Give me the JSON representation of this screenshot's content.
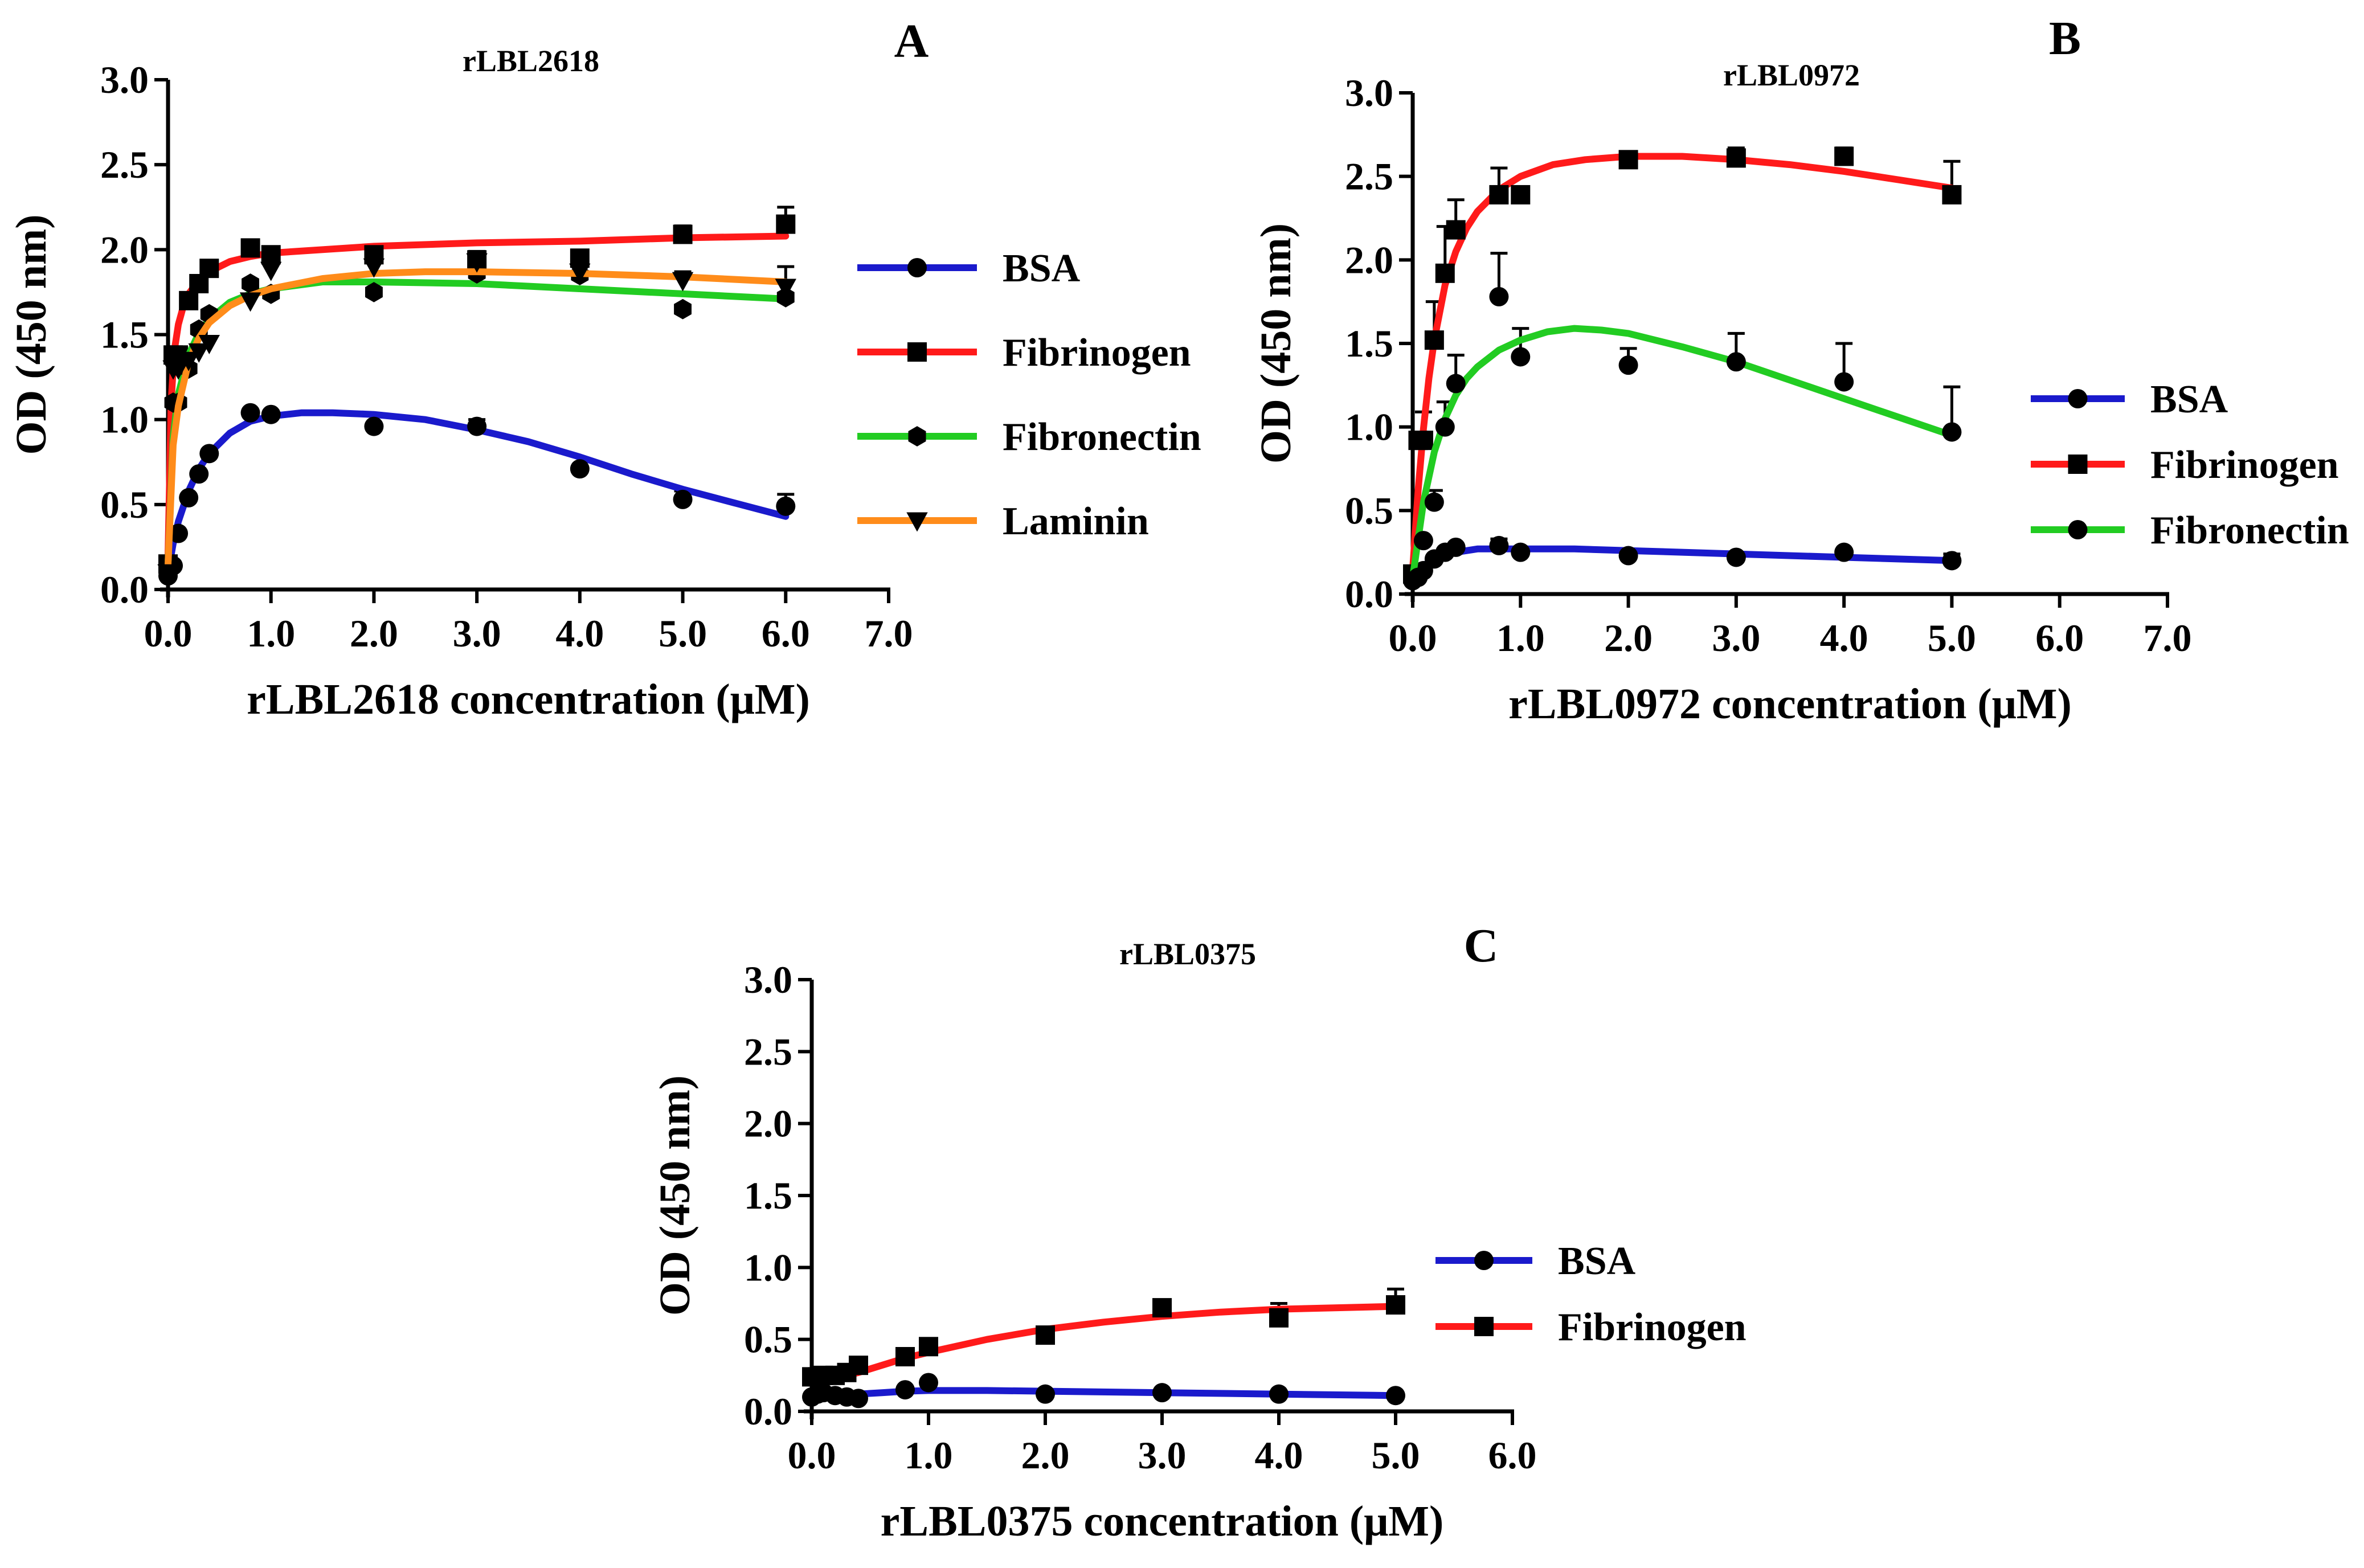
{
  "chart_data": [
    {
      "type": "scatter",
      "panel_label": "A",
      "title": "rLBL2618",
      "xlabel": "rLBL2618 concentration (μM)",
      "ylabel": "OD (450 nm)",
      "xlim": [
        0,
        7
      ],
      "ylim": [
        0,
        3
      ],
      "xticks": [
        "0.0",
        "1.0",
        "2.0",
        "3.0",
        "4.0",
        "5.0",
        "6.0",
        "7.0"
      ],
      "yticks": [
        "0.0",
        "0.5",
        "1.0",
        "1.5",
        "2.0",
        "2.5",
        "3.0"
      ],
      "series": [
        {
          "name": "BSA",
          "color": "#1a1acc",
          "marker": "circle",
          "x": [
            0.0,
            0.05,
            0.1,
            0.2,
            0.3,
            0.4,
            0.8,
            1.0,
            2.0,
            3.0,
            4.0,
            5.0,
            6.0
          ],
          "y": [
            0.08,
            0.14,
            0.33,
            0.54,
            0.68,
            0.8,
            1.04,
            1.03,
            0.96,
            0.96,
            0.71,
            0.53,
            0.49
          ],
          "err": [
            0,
            0,
            0,
            0,
            0,
            0,
            0,
            0,
            0,
            0.04,
            0,
            0.05,
            0.07
          ],
          "fit_x": [
            0.0,
            0.05,
            0.1,
            0.2,
            0.3,
            0.4,
            0.6,
            0.8,
            1.0,
            1.3,
            1.6,
            2.0,
            2.5,
            3.0,
            3.5,
            4.0,
            4.5,
            5.0,
            5.5,
            6.0
          ],
          "fit_y": [
            0.1,
            0.27,
            0.4,
            0.58,
            0.71,
            0.8,
            0.92,
            0.99,
            1.02,
            1.04,
            1.04,
            1.03,
            1.0,
            0.94,
            0.87,
            0.78,
            0.68,
            0.59,
            0.51,
            0.43
          ]
        },
        {
          "name": "Fibrinogen",
          "color": "#ff1a1a",
          "marker": "square",
          "x": [
            0.0,
            0.05,
            0.1,
            0.2,
            0.3,
            0.4,
            0.8,
            1.0,
            2.0,
            3.0,
            4.0,
            5.0,
            6.0
          ],
          "y": [
            0.15,
            1.38,
            1.38,
            1.7,
            1.8,
            1.89,
            2.01,
            1.97,
            1.97,
            1.94,
            1.95,
            2.09,
            2.15
          ],
          "err": [
            0,
            0,
            0,
            0,
            0,
            0,
            0,
            0.04,
            0.04,
            0.05,
            0,
            0.05,
            0.1
          ],
          "fit_x": [
            0.0,
            0.03,
            0.06,
            0.1,
            0.15,
            0.2,
            0.3,
            0.4,
            0.6,
            0.8,
            1.0,
            1.5,
            2.0,
            3.0,
            4.0,
            5.0,
            6.0
          ],
          "fit_y": [
            0.2,
            1.1,
            1.4,
            1.56,
            1.67,
            1.74,
            1.82,
            1.87,
            1.93,
            1.96,
            1.98,
            2.0,
            2.02,
            2.04,
            2.05,
            2.07,
            2.08
          ]
        },
        {
          "name": "Fibronectin",
          "color": "#22cc22",
          "marker": "hexagon",
          "x": [
            0.0,
            0.05,
            0.1,
            0.2,
            0.3,
            0.4,
            0.8,
            1.0,
            2.0,
            3.0,
            4.0,
            5.0,
            6.0
          ],
          "y": [
            0.12,
            1.1,
            1.1,
            1.3,
            1.53,
            1.62,
            1.8,
            1.74,
            1.75,
            1.86,
            1.85,
            1.65,
            1.72
          ],
          "err": [
            0,
            0,
            0,
            0,
            0,
            0,
            0,
            0,
            0,
            0,
            0,
            0,
            0
          ],
          "fit_x": [
            0.0,
            0.05,
            0.1,
            0.2,
            0.3,
            0.4,
            0.6,
            0.8,
            1.0,
            1.5,
            2.0,
            3.0,
            4.0,
            5.0,
            6.0
          ],
          "fit_y": [
            0.15,
            0.9,
            1.15,
            1.38,
            1.51,
            1.59,
            1.69,
            1.74,
            1.77,
            1.81,
            1.81,
            1.8,
            1.77,
            1.74,
            1.71
          ]
        },
        {
          "name": "Laminin",
          "color": "#ff8c1a",
          "marker": "triangle-down",
          "x": [
            0.0,
            0.05,
            0.1,
            0.2,
            0.3,
            0.4,
            0.8,
            1.0,
            2.0,
            3.0,
            4.0,
            5.0,
            6.0
          ],
          "y": [
            0.1,
            1.3,
            1.3,
            1.35,
            1.4,
            1.45,
            1.7,
            1.88,
            1.9,
            1.93,
            1.87,
            1.82,
            1.78
          ],
          "err": [
            0,
            0,
            0,
            0,
            0,
            0,
            0,
            0,
            0,
            0,
            0,
            0.05,
            0.12
          ],
          "fit_x": [
            0.0,
            0.05,
            0.1,
            0.2,
            0.3,
            0.4,
            0.6,
            0.8,
            1.0,
            1.5,
            2.0,
            2.5,
            3.0,
            4.0,
            5.0,
            6.0
          ],
          "fit_y": [
            0.15,
            0.85,
            1.08,
            1.34,
            1.48,
            1.57,
            1.67,
            1.73,
            1.77,
            1.83,
            1.86,
            1.87,
            1.87,
            1.86,
            1.84,
            1.81
          ]
        }
      ]
    },
    {
      "type": "scatter",
      "panel_label": "B",
      "title": "rLBL0972",
      "xlabel": "rLBL0972 concentration (μM)",
      "ylabel": "OD (450 nm)",
      "xlim": [
        0,
        7
      ],
      "ylim": [
        0,
        3
      ],
      "xticks": [
        "0.0",
        "1.0",
        "2.0",
        "3.0",
        "4.0",
        "5.0",
        "6.0",
        "7.0"
      ],
      "yticks": [
        "0.0",
        "0.5",
        "1.0",
        "1.5",
        "2.0",
        "2.5",
        "3.0"
      ],
      "series": [
        {
          "name": "BSA",
          "color": "#1a1acc",
          "marker": "circle",
          "x": [
            0.0,
            0.05,
            0.1,
            0.2,
            0.3,
            0.4,
            0.8,
            1.0,
            2.0,
            3.0,
            4.0,
            5.0
          ],
          "y": [
            0.1,
            0.12,
            0.14,
            0.21,
            0.25,
            0.28,
            0.29,
            0.25,
            0.23,
            0.22,
            0.25,
            0.2
          ],
          "err": [
            0,
            0,
            0,
            0,
            0,
            0,
            0.04,
            0,
            0,
            0,
            0,
            0.04
          ],
          "fit_x": [
            0.0,
            0.1,
            0.2,
            0.3,
            0.4,
            0.6,
            0.8,
            1.0,
            1.5,
            2.0,
            3.0,
            4.0,
            5.0
          ],
          "fit_y": [
            0.08,
            0.17,
            0.21,
            0.24,
            0.25,
            0.27,
            0.27,
            0.27,
            0.27,
            0.26,
            0.24,
            0.22,
            0.2
          ]
        },
        {
          "name": "Fibrinogen",
          "color": "#ff1a1a",
          "marker": "square",
          "x": [
            0.0,
            0.05,
            0.1,
            0.2,
            0.3,
            0.4,
            0.8,
            1.0,
            2.0,
            3.0,
            4.0,
            5.0
          ],
          "y": [
            0.12,
            0.92,
            0.92,
            1.52,
            1.92,
            2.18,
            2.39,
            2.39,
            2.6,
            2.61,
            2.62,
            2.39
          ],
          "err": [
            0,
            0,
            0.17,
            0.23,
            0.28,
            0.18,
            0.16,
            0,
            0.04,
            0.06,
            0.05,
            0.2
          ],
          "fit_x": [
            0.0,
            0.05,
            0.1,
            0.15,
            0.2,
            0.3,
            0.4,
            0.5,
            0.6,
            0.8,
            1.0,
            1.3,
            1.6,
            2.0,
            2.5,
            3.0,
            3.5,
            4.0,
            4.5,
            5.0
          ],
          "fit_y": [
            0.15,
            0.62,
            0.99,
            1.29,
            1.52,
            1.85,
            2.05,
            2.19,
            2.29,
            2.42,
            2.5,
            2.57,
            2.6,
            2.62,
            2.62,
            2.6,
            2.57,
            2.53,
            2.48,
            2.43
          ]
        },
        {
          "name": "Fibronectin",
          "color": "#22cc22",
          "marker": "circle",
          "x": [
            0.0,
            0.05,
            0.1,
            0.2,
            0.3,
            0.4,
            0.8,
            1.0,
            2.0,
            3.0,
            4.0,
            5.0
          ],
          "y": [
            0.08,
            0.1,
            0.32,
            0.55,
            1.0,
            1.26,
            1.78,
            1.42,
            1.37,
            1.39,
            1.27,
            0.97
          ],
          "err": [
            0,
            0,
            0,
            0.07,
            0.15,
            0.17,
            0.26,
            0.17,
            0.1,
            0.17,
            0.23,
            0.27
          ],
          "fit_x": [
            0.0,
            0.1,
            0.2,
            0.3,
            0.4,
            0.5,
            0.6,
            0.8,
            1.0,
            1.25,
            1.5,
            1.75,
            2.0,
            2.5,
            3.0,
            3.5,
            4.0,
            4.5,
            5.0
          ],
          "fit_y": [
            0.1,
            0.55,
            0.85,
            1.05,
            1.19,
            1.29,
            1.36,
            1.46,
            1.52,
            1.57,
            1.59,
            1.58,
            1.56,
            1.48,
            1.39,
            1.28,
            1.17,
            1.06,
            0.95
          ]
        }
      ]
    },
    {
      "type": "scatter",
      "panel_label": "C",
      "title": "rLBL0375",
      "xlabel": "rLBL0375 concentration (μM)",
      "ylabel": "OD (450 nm)",
      "xlim": [
        0,
        6
      ],
      "ylim": [
        0,
        3
      ],
      "xticks": [
        "0.0",
        "1.0",
        "2.0",
        "3.0",
        "4.0",
        "5.0",
        "6.0"
      ],
      "yticks": [
        "0.0",
        "0.5",
        "1.0",
        "1.5",
        "2.0",
        "2.5",
        "3.0"
      ],
      "series": [
        {
          "name": "BSA",
          "color": "#1a1acc",
          "marker": "circle",
          "x": [
            0.0,
            0.05,
            0.1,
            0.2,
            0.3,
            0.4,
            0.8,
            1.0,
            2.0,
            3.0,
            4.0,
            5.0
          ],
          "y": [
            0.1,
            0.12,
            0.13,
            0.11,
            0.1,
            0.09,
            0.15,
            0.2,
            0.12,
            0.13,
            0.12,
            0.11
          ],
          "err": [
            0,
            0,
            0,
            0,
            0,
            0,
            0,
            0,
            0,
            0,
            0,
            0
          ],
          "fit_x": [
            0.0,
            0.2,
            0.4,
            0.6,
            0.8,
            1.0,
            1.5,
            2.0,
            3.0,
            4.0,
            5.0
          ],
          "fit_y": [
            0.1,
            0.11,
            0.12,
            0.13,
            0.14,
            0.145,
            0.145,
            0.14,
            0.13,
            0.12,
            0.11
          ]
        },
        {
          "name": "Fibrinogen",
          "color": "#ff1a1a",
          "marker": "square",
          "x": [
            0.0,
            0.05,
            0.1,
            0.2,
            0.3,
            0.4,
            0.8,
            1.0,
            2.0,
            3.0,
            4.0,
            5.0
          ],
          "y": [
            0.24,
            0.24,
            0.25,
            0.25,
            0.27,
            0.32,
            0.38,
            0.45,
            0.53,
            0.72,
            0.65,
            0.74
          ],
          "err": [
            0,
            0,
            0,
            0,
            0,
            0,
            0,
            0.03,
            0.05,
            0.05,
            0.1,
            0.11
          ],
          "fit_x": [
            0.0,
            0.2,
            0.4,
            0.6,
            0.8,
            1.0,
            1.5,
            2.0,
            2.5,
            3.0,
            3.5,
            4.0,
            4.5,
            5.0
          ],
          "fit_y": [
            0.21,
            0.23,
            0.27,
            0.32,
            0.37,
            0.41,
            0.5,
            0.57,
            0.62,
            0.66,
            0.69,
            0.71,
            0.72,
            0.73
          ]
        }
      ]
    }
  ]
}
